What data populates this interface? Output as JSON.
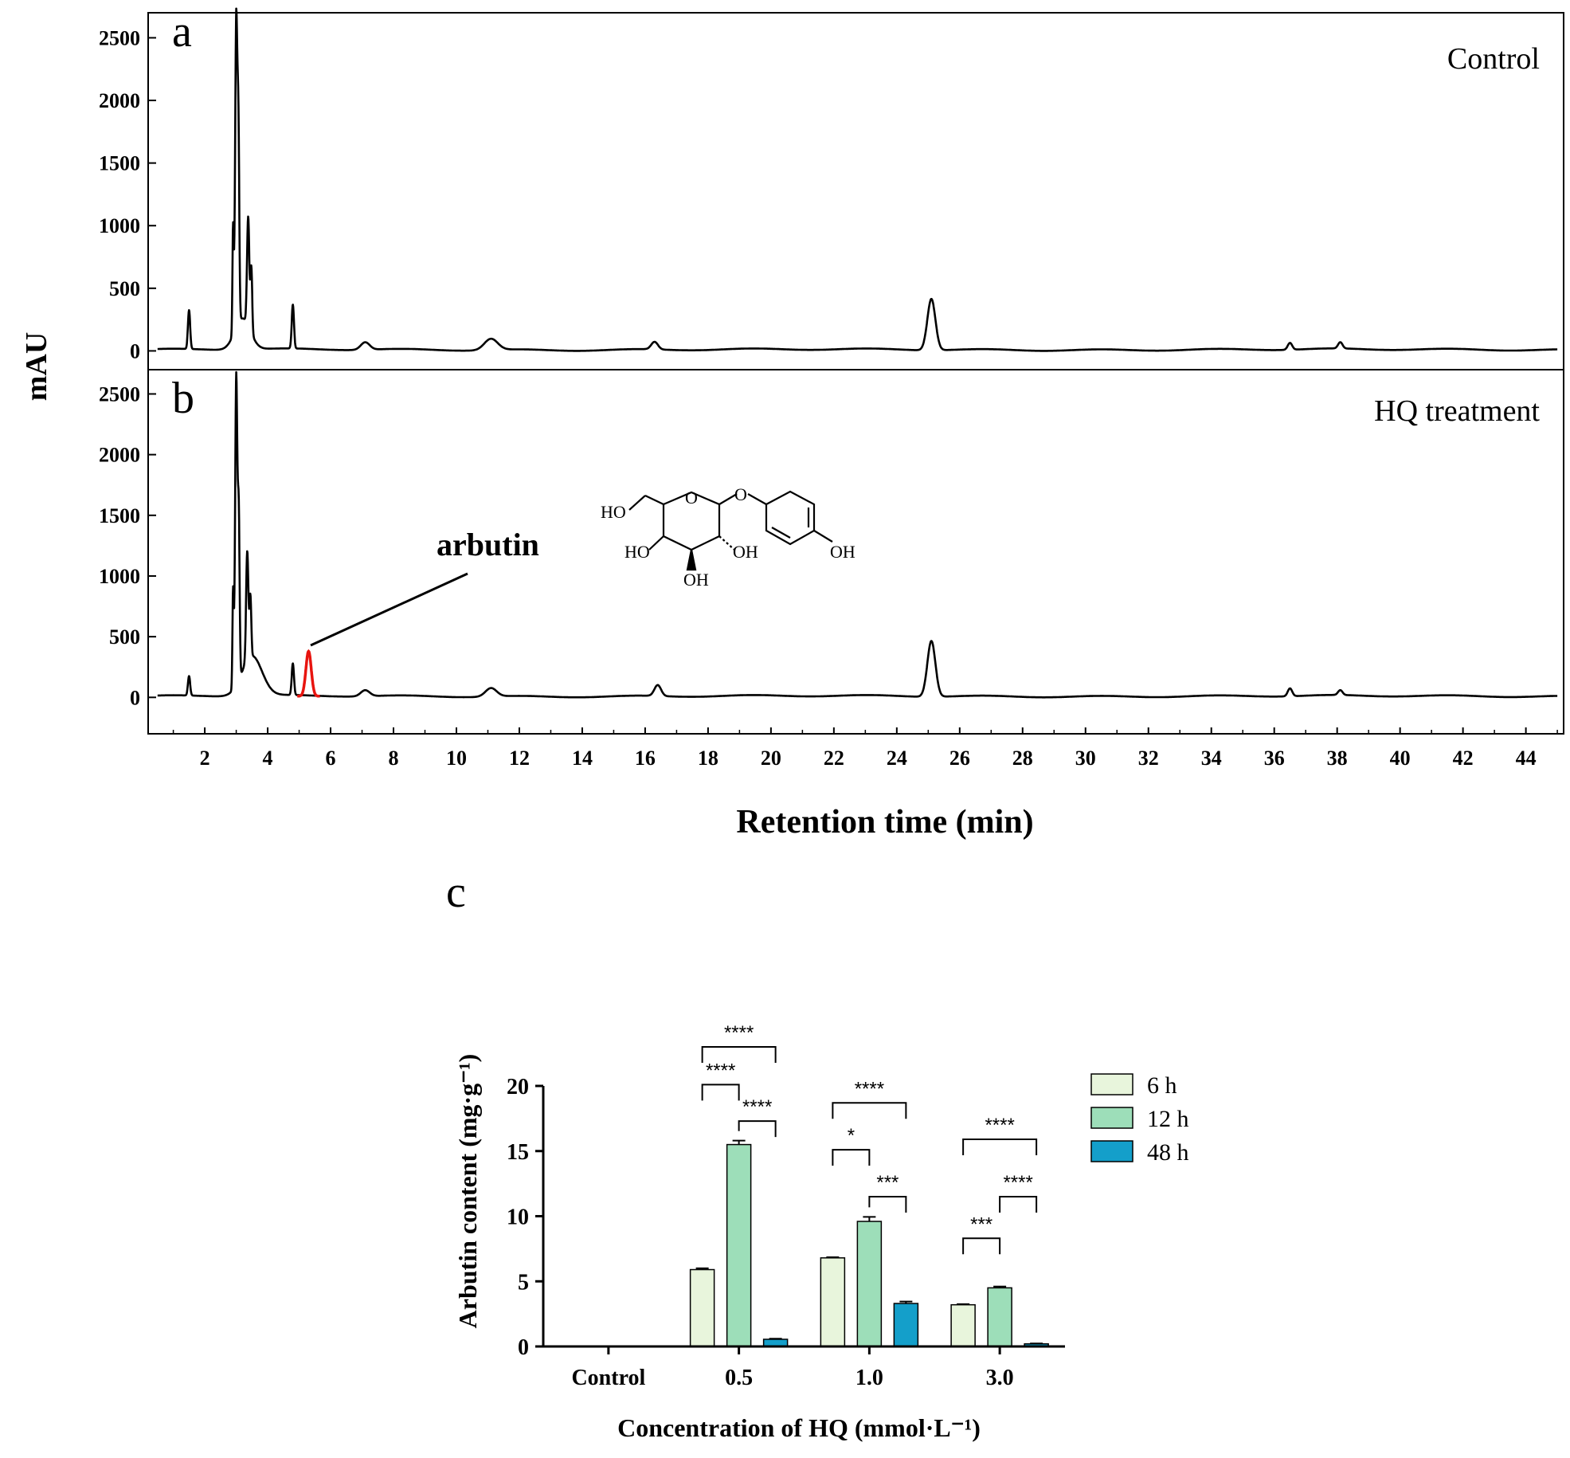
{
  "chart_data": [
    {
      "type": "line",
      "panel_label": "a",
      "corner_text": "Control",
      "ylabel": "mAU",
      "xlabel": "Retention time (min)",
      "xlim": [
        0.2,
        45.2
      ],
      "ylim": [
        -150,
        2700
      ],
      "xticks": [
        "2",
        "4",
        "6",
        "8",
        "10",
        "12",
        "14",
        "16",
        "18",
        "20",
        "22",
        "24",
        "26",
        "28",
        "30",
        "32",
        "34",
        "36",
        "38",
        "40",
        "42",
        "44"
      ],
      "yticks": [
        "0",
        "500",
        "1000",
        "1500",
        "2000",
        "2500"
      ],
      "baseline": 10,
      "peaks": [
        {
          "t": 1.5,
          "h": 310,
          "w": 0.05
        },
        {
          "t": 2.9,
          "h": 850,
          "w": 0.03
        },
        {
          "t": 3.0,
          "h": 2470,
          "w": 0.05
        },
        {
          "t": 3.07,
          "h": 1400,
          "w": 0.04
        },
        {
          "t": 3.2,
          "h": 250,
          "w": 0.35
        },
        {
          "t": 3.38,
          "h": 870,
          "w": 0.05
        },
        {
          "t": 3.48,
          "h": 520,
          "w": 0.04
        },
        {
          "t": 4.8,
          "h": 350,
          "w": 0.05
        },
        {
          "t": 7.1,
          "h": 60,
          "w": 0.2
        },
        {
          "t": 11.1,
          "h": 90,
          "w": 0.3
        },
        {
          "t": 16.3,
          "h": 60,
          "w": 0.15
        },
        {
          "t": 25.1,
          "h": 410,
          "w": 0.18
        },
        {
          "t": 36.5,
          "h": 55,
          "w": 0.1
        },
        {
          "t": 38.1,
          "h": 50,
          "w": 0.1
        }
      ]
    },
    {
      "type": "line",
      "panel_label": "b",
      "corner_text": "HQ treatment",
      "annotation": "arbutin",
      "structure_labels": [
        "HO",
        "O",
        "O",
        "HO",
        "OH",
        "OH",
        "OH"
      ],
      "xlim": [
        0.2,
        45.2
      ],
      "ylim": [
        -300,
        2700
      ],
      "xticks": [
        "2",
        "4",
        "6",
        "8",
        "10",
        "12",
        "14",
        "16",
        "18",
        "20",
        "22",
        "24",
        "26",
        "28",
        "30",
        "32",
        "34",
        "36",
        "38",
        "40",
        "42",
        "44"
      ],
      "yticks": [
        "0",
        "500",
        "1000",
        "1500",
        "2000",
        "2500"
      ],
      "baseline": 10,
      "peaks": [
        {
          "t": 1.5,
          "h": 160,
          "w": 0.05
        },
        {
          "t": 2.9,
          "h": 800,
          "w": 0.03
        },
        {
          "t": 3.0,
          "h": 2550,
          "w": 0.05
        },
        {
          "t": 3.08,
          "h": 1300,
          "w": 0.04
        },
        {
          "t": 3.5,
          "h": 330,
          "w": 0.45
        },
        {
          "t": 3.35,
          "h": 900,
          "w": 0.05
        },
        {
          "t": 3.45,
          "h": 500,
          "w": 0.04
        },
        {
          "t": 4.8,
          "h": 260,
          "w": 0.05
        },
        {
          "t": 7.1,
          "h": 50,
          "w": 0.2
        },
        {
          "t": 11.1,
          "h": 70,
          "w": 0.25
        },
        {
          "t": 16.4,
          "h": 90,
          "w": 0.15
        },
        {
          "t": 25.1,
          "h": 460,
          "w": 0.18
        },
        {
          "t": 36.5,
          "h": 65,
          "w": 0.1
        },
        {
          "t": 38.1,
          "h": 40,
          "w": 0.1
        }
      ],
      "highlight_peak": {
        "t": 5.3,
        "h": 370,
        "w": 0.12,
        "color": "#e8140f"
      }
    },
    {
      "type": "bar",
      "panel_label": "c",
      "categories": [
        "Control",
        "0.5",
        "1.0",
        "3.0"
      ],
      "xlabel": "Concentration of HQ (mmol·L⁻¹)",
      "ylabel": "Arbutin content (mg·g⁻¹)",
      "ylim": [
        0,
        20
      ],
      "yticks": [
        "0",
        "5",
        "10",
        "15",
        "20"
      ],
      "series": [
        {
          "name": "6 h",
          "color": "#e8f5dc",
          "values": [
            0,
            5.9,
            6.8,
            3.2
          ],
          "errors": [
            0,
            0.1,
            0.05,
            0.05
          ]
        },
        {
          "name": "12 h",
          "color": "#9ddeb9",
          "values": [
            0,
            15.5,
            9.6,
            4.5
          ],
          "errors": [
            0,
            0.3,
            0.35,
            0.1
          ]
        },
        {
          "name": "48 h",
          "color": "#149fca",
          "values": [
            0,
            0.55,
            3.3,
            0.2
          ],
          "errors": [
            0,
            0.05,
            0.15,
            0.03
          ]
        }
      ],
      "significance": [
        {
          "group": 1,
          "from": 0,
          "to": 2,
          "label": "****",
          "y_top": 23.0
        },
        {
          "group": 1,
          "from": 0,
          "to": 1,
          "label": "****",
          "y_top": 20.1
        },
        {
          "group": 1,
          "from": 1,
          "to": 2,
          "label": "****",
          "y_top": 17.3
        },
        {
          "group": 2,
          "from": 0,
          "to": 2,
          "label": "****",
          "y_top": 18.7
        },
        {
          "group": 2,
          "from": 0,
          "to": 1,
          "label": "*",
          "y_top": 15.1
        },
        {
          "group": 2,
          "from": 1,
          "to": 2,
          "label": "***",
          "y_top": 11.5
        },
        {
          "group": 3,
          "from": 0,
          "to": 2,
          "label": "****",
          "y_top": 15.9
        },
        {
          "group": 3,
          "from": 1,
          "to": 2,
          "label": "****",
          "y_top": 11.5
        },
        {
          "group": 3,
          "from": 0,
          "to": 1,
          "label": "***",
          "y_top": 8.3
        }
      ]
    }
  ]
}
